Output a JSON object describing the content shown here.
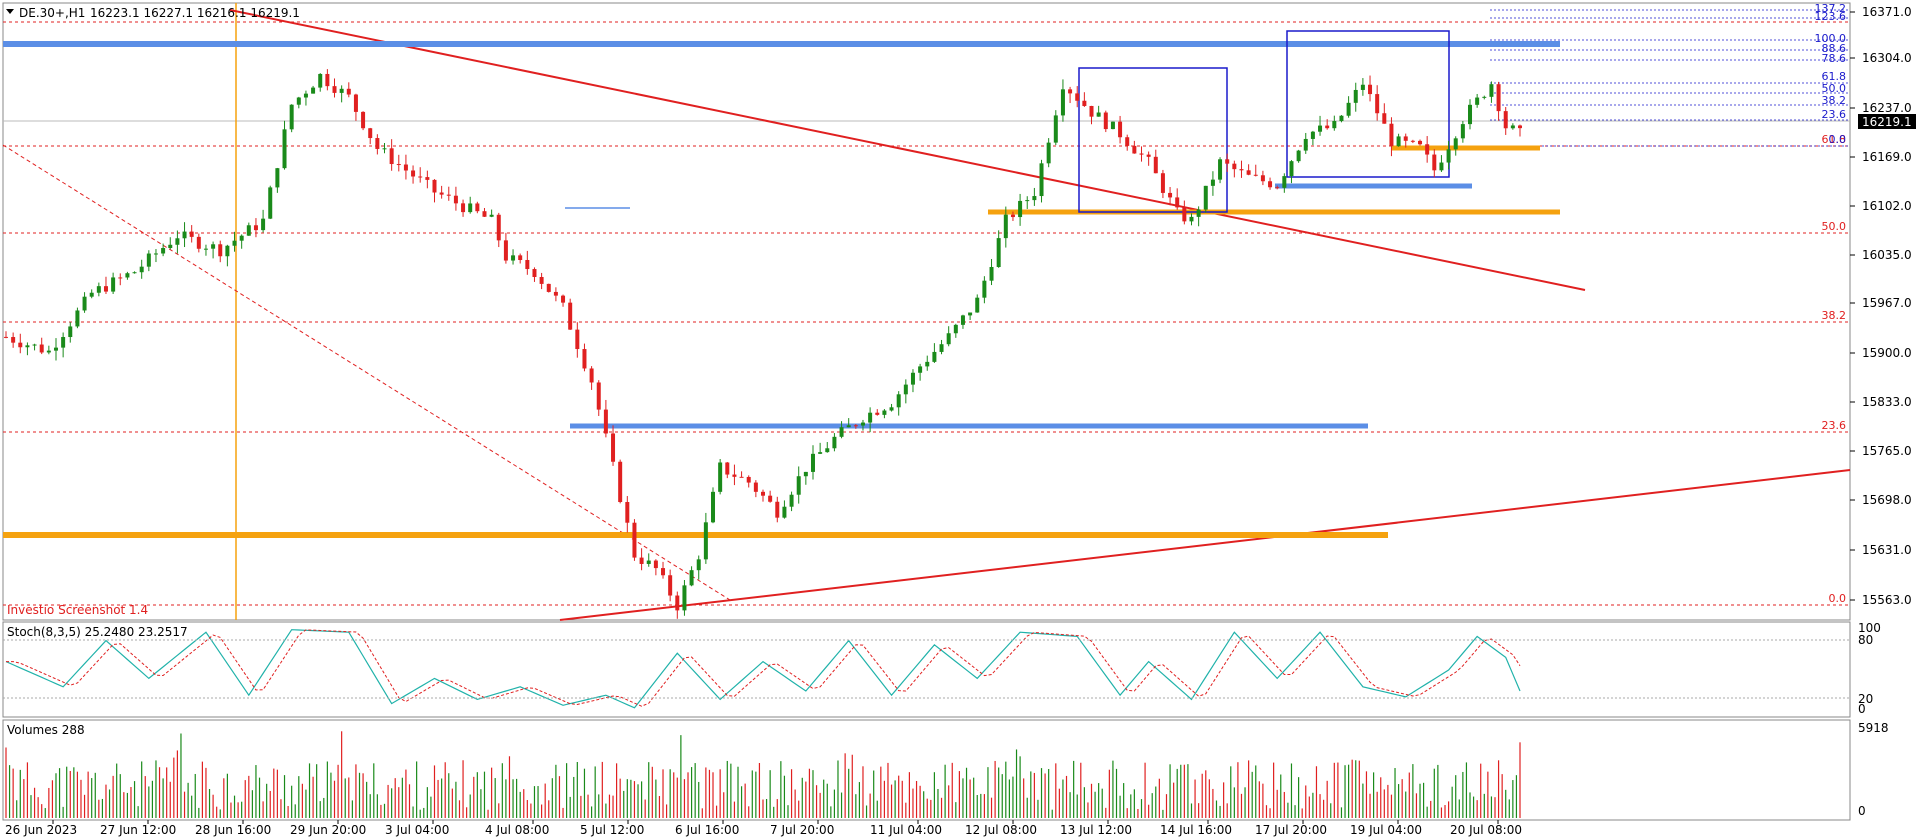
{
  "instrument": {
    "symbol": "DE.30+,H1",
    "ohlc": "16223.1 16227.1 16216.1 16219.1"
  },
  "watermark": "Investio Screenshot 1.4",
  "price_axis": {
    "ticks": [
      "16371.0",
      "16304.0",
      "16237.0",
      "16169.0",
      "16102.0",
      "16035.0",
      "15967.0",
      "15900.0",
      "15833.0",
      "15765.0",
      "15698.0",
      "15631.0",
      "15563.0"
    ],
    "current_price": "16219.1"
  },
  "time_axis": {
    "labels": [
      "26 Jun 2023",
      "27 Jun 12:00",
      "28 Jun 16:00",
      "29 Jun 20:00",
      "3 Jul 04:00",
      "4 Jul 08:00",
      "5 Jul 12:00",
      "6 Jul 16:00",
      "7 Jul 20:00",
      "11 Jul 04:00",
      "12 Jul 08:00",
      "13 Jul 12:00",
      "14 Jul 16:00",
      "17 Jul 20:00",
      "19 Jul 04:00",
      "20 Jul 08:00"
    ]
  },
  "fib_major": [
    "0.0",
    "23.6",
    "38.2",
    "50.0",
    "61.8"
  ],
  "fib_minor": [
    "137.2",
    "123.6",
    "100.0",
    "88.6",
    "78.6",
    "61.8",
    "50.0",
    "38.2",
    "23.6",
    "0.0"
  ],
  "stochastic": {
    "label": "Stoch(8,3,5) 25.2480 23.2517",
    "scale": [
      "100",
      "80",
      "20",
      "0"
    ]
  },
  "volumes": {
    "label": "Volumes 288",
    "scale": [
      "5918",
      "0"
    ]
  },
  "colors": {
    "bull": "#1a8a1a",
    "bear": "#e02020",
    "trend": "#e02020",
    "support_blue": "#5b8ee6",
    "support_orange": "#f5a20f",
    "box": "#1a1acc",
    "fib_major": "#e02020",
    "fib_minor": "#1a1acc",
    "stoch_main": "#20b2aa",
    "stoch_signal": "#e02020"
  },
  "chart_data": {
    "type": "candlestick",
    "title": "DE.30+,H1",
    "ylim": [
      15550,
      16400
    ],
    "price_path": [
      [
        0,
        15940
      ],
      [
        6,
        15920
      ],
      [
        12,
        16000
      ],
      [
        18,
        16030
      ],
      [
        24,
        16080
      ],
      [
        30,
        16060
      ],
      [
        36,
        16100
      ],
      [
        40,
        16260
      ],
      [
        44,
        16300
      ],
      [
        48,
        16270
      ],
      [
        52,
        16200
      ],
      [
        56,
        16170
      ],
      [
        60,
        16140
      ],
      [
        64,
        16120
      ],
      [
        68,
        16100
      ],
      [
        70,
        16050
      ],
      [
        74,
        16030
      ],
      [
        78,
        15980
      ],
      [
        82,
        15880
      ],
      [
        85,
        15760
      ],
      [
        88,
        15640
      ],
      [
        91,
        15620
      ],
      [
        94,
        15570
      ],
      [
        97,
        15640
      ],
      [
        100,
        15760
      ],
      [
        104,
        15740
      ],
      [
        108,
        15700
      ],
      [
        112,
        15760
      ],
      [
        116,
        15800
      ],
      [
        120,
        15830
      ],
      [
        124,
        15850
      ],
      [
        128,
        15900
      ],
      [
        132,
        15940
      ],
      [
        136,
        15990
      ],
      [
        140,
        16100
      ],
      [
        144,
        16140
      ],
      [
        148,
        16290
      ],
      [
        152,
        16250
      ],
      [
        156,
        16220
      ],
      [
        160,
        16180
      ],
      [
        164,
        16110
      ],
      [
        166,
        16100
      ],
      [
        170,
        16180
      ],
      [
        174,
        16160
      ],
      [
        178,
        16150
      ],
      [
        182,
        16220
      ],
      [
        186,
        16230
      ],
      [
        190,
        16290
      ],
      [
        194,
        16210
      ],
      [
        198,
        16200
      ],
      [
        200,
        16170
      ],
      [
        204,
        16240
      ],
      [
        208,
        16290
      ],
      [
        210,
        16230
      ],
      [
        212,
        16219.1
      ]
    ],
    "stoch_main": [
      [
        0,
        60
      ],
      [
        8,
        30
      ],
      [
        14,
        85
      ],
      [
        20,
        40
      ],
      [
        28,
        95
      ],
      [
        34,
        20
      ],
      [
        40,
        98
      ],
      [
        48,
        95
      ],
      [
        54,
        10
      ],
      [
        60,
        40
      ],
      [
        66,
        15
      ],
      [
        72,
        30
      ],
      [
        78,
        8
      ],
      [
        84,
        20
      ],
      [
        88,
        5
      ],
      [
        94,
        70
      ],
      [
        100,
        15
      ],
      [
        106,
        60
      ],
      [
        112,
        25
      ],
      [
        118,
        85
      ],
      [
        124,
        20
      ],
      [
        130,
        80
      ],
      [
        136,
        40
      ],
      [
        142,
        95
      ],
      [
        150,
        90
      ],
      [
        156,
        20
      ],
      [
        160,
        60
      ],
      [
        166,
        15
      ],
      [
        172,
        95
      ],
      [
        178,
        40
      ],
      [
        184,
        95
      ],
      [
        190,
        30
      ],
      [
        196,
        18
      ],
      [
        202,
        50
      ],
      [
        206,
        90
      ],
      [
        210,
        65
      ],
      [
        212,
        25
      ]
    ]
  }
}
